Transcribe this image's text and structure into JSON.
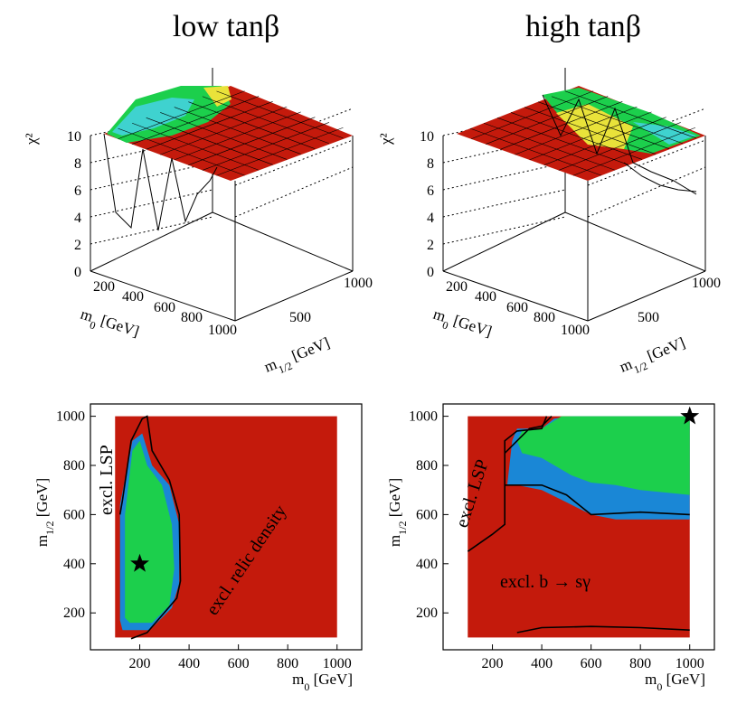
{
  "titles": {
    "left": "low tanβ",
    "right": "high tanβ"
  },
  "colors": {
    "red": "#c41a0c",
    "blue": "#1a87d6",
    "green": "#1ccf4c",
    "surface_yellow": "#e9e23a",
    "surface_cyan": "#3fd2cf",
    "grid_line": "#000000"
  },
  "chart_data": [
    {
      "type": "surface",
      "panel": "top-left",
      "zlabel": "χ²",
      "xlabel": "m0 [GeV]",
      "ylabel": "m1/2 [GeV]",
      "xticks": [
        "200",
        "400",
        "600",
        "800",
        "1000"
      ],
      "yticks": [
        "500",
        "1000"
      ],
      "zticks": [
        "0",
        "2",
        "4",
        "6",
        "8",
        "10"
      ],
      "zlim": [
        0,
        10
      ],
      "x": [
        100,
        200,
        300,
        400,
        500,
        600,
        700,
        800,
        900,
        1000
      ],
      "y": [
        100,
        200,
        300,
        400,
        500,
        600,
        700,
        800,
        900,
        1000
      ],
      "minimum_chi2_approx": 3,
      "clipped_above": 10
    },
    {
      "type": "surface",
      "panel": "top-right",
      "zlabel": "χ²",
      "xlabel": "m0 [GeV]",
      "ylabel": "m1/2 [GeV]",
      "xticks": [
        "200",
        "400",
        "600",
        "800",
        "1000"
      ],
      "yticks": [
        "500",
        "1000"
      ],
      "zticks": [
        "0",
        "2",
        "4",
        "6",
        "8",
        "10"
      ],
      "zlim": [
        0,
        10
      ],
      "x": [
        100,
        200,
        300,
        400,
        500,
        600,
        700,
        800,
        900,
        1000
      ],
      "y": [
        100,
        200,
        300,
        400,
        500,
        600,
        700,
        800,
        900,
        1000
      ],
      "minimum_chi2_approx": 5.5,
      "clipped_above": 10
    },
    {
      "type": "contour",
      "panel": "bottom-left",
      "xlabel": "m0 [GeV]",
      "ylabel": "m1/2 [GeV]",
      "xlim": [
        0,
        1100
      ],
      "ylim": [
        50,
        1050
      ],
      "xticks": [
        "200",
        "400",
        "600",
        "800",
        "1000"
      ],
      "yticks": [
        "200",
        "400",
        "600",
        "800",
        "1000"
      ],
      "annotations": [
        "excl. LSP",
        "excl. relic density"
      ],
      "best_fit": {
        "x": 200,
        "y": 400
      },
      "regions": {
        "green": [
          [
            140,
            180
          ],
          [
            140,
            600
          ],
          [
            170,
            860
          ],
          [
            200,
            900
          ],
          [
            230,
            800
          ],
          [
            290,
            720
          ],
          [
            330,
            560
          ],
          [
            340,
            380
          ],
          [
            320,
            230
          ],
          [
            250,
            160
          ],
          [
            160,
            160
          ]
        ],
        "blue": [
          [
            120,
            170
          ],
          [
            120,
            640
          ],
          [
            170,
            900
          ],
          [
            210,
            930
          ],
          [
            250,
            800
          ],
          [
            320,
            720
          ],
          [
            360,
            560
          ],
          [
            360,
            320
          ],
          [
            330,
            220
          ],
          [
            240,
            130
          ],
          [
            130,
            130
          ]
        ],
        "contour": [
          [
            120,
            600
          ],
          [
            130,
            660
          ],
          [
            165,
            900
          ],
          [
            210,
            990
          ],
          [
            230,
            1000
          ],
          [
            250,
            860
          ],
          [
            320,
            740
          ],
          [
            360,
            600
          ],
          [
            365,
            330
          ],
          [
            350,
            260
          ],
          [
            230,
            120
          ],
          [
            165,
            95
          ]
        ]
      }
    },
    {
      "type": "contour",
      "panel": "bottom-right",
      "xlabel": "m0 [GeV]",
      "ylabel": "m1/2 [GeV]",
      "xlim": [
        0,
        1100
      ],
      "ylim": [
        50,
        1050
      ],
      "xticks": [
        "200",
        "400",
        "600",
        "800",
        "1000"
      ],
      "yticks": [
        "200",
        "400",
        "600",
        "800",
        "1000"
      ],
      "annotations": [
        "excl. LSP",
        "excl. b → sγ"
      ],
      "best_fit": {
        "x": 1000,
        "y": 1000
      },
      "regions": {
        "green": [
          [
            320,
            940
          ],
          [
            400,
            950
          ],
          [
            480,
            1000
          ],
          [
            1000,
            1000
          ],
          [
            1000,
            680
          ],
          [
            800,
            700
          ],
          [
            700,
            720
          ],
          [
            600,
            730
          ],
          [
            520,
            760
          ],
          [
            400,
            830
          ],
          [
            320,
            850
          ],
          [
            300,
            900
          ]
        ],
        "blue": [
          [
            280,
            900
          ],
          [
            300,
            950
          ],
          [
            400,
            950
          ],
          [
            450,
            990
          ],
          [
            520,
            1000
          ],
          [
            1000,
            1000
          ],
          [
            1000,
            580
          ],
          [
            700,
            580
          ],
          [
            600,
            600
          ],
          [
            500,
            650
          ],
          [
            400,
            700
          ],
          [
            300,
            720
          ],
          [
            260,
            720
          ]
        ],
        "contour_upper": [
          [
            250,
            850
          ],
          [
            300,
            900
          ],
          [
            350,
            950
          ],
          [
            400,
            960
          ],
          [
            440,
            1000
          ]
        ],
        "contour_mid": [
          [
            250,
            720
          ],
          [
            400,
            720
          ],
          [
            500,
            680
          ],
          [
            600,
            600
          ],
          [
            800,
            610
          ],
          [
            1000,
            600
          ]
        ],
        "contour_lsp": [
          [
            100,
            450
          ],
          [
            200,
            520
          ],
          [
            250,
            560
          ],
          [
            250,
            900
          ],
          [
            300,
            940
          ],
          [
            400,
            950
          ],
          [
            420,
            1000
          ]
        ],
        "contour_low": [
          [
            300,
            120
          ],
          [
            400,
            140
          ],
          [
            600,
            145
          ],
          [
            800,
            140
          ],
          [
            1000,
            130
          ]
        ]
      }
    }
  ]
}
